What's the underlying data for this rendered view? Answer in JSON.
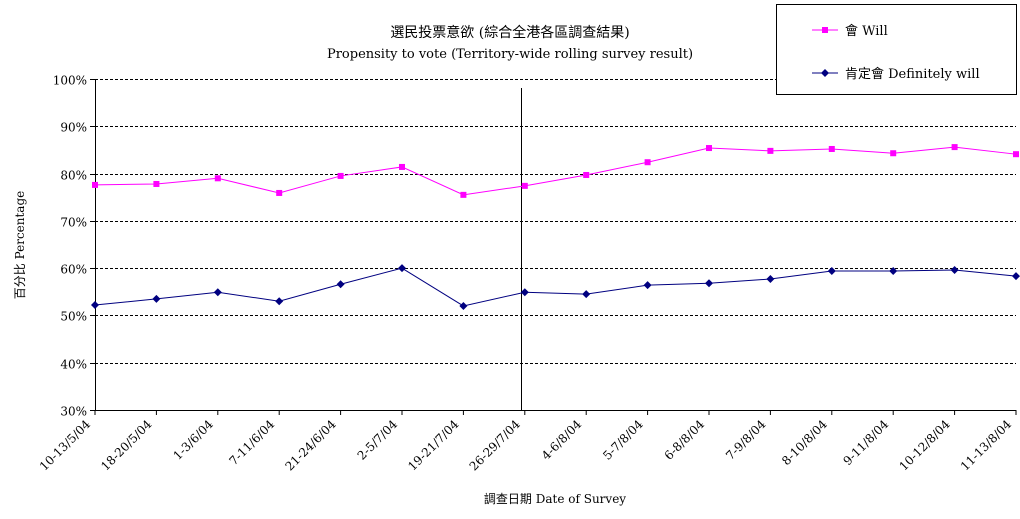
{
  "chart_data": {
    "type": "line",
    "title": "選民投票意欲 (綜合全港各區調查結果)",
    "subtitle": "Propensity to vote (Territory-wide rolling survey result)",
    "xlabel": "調查日期 Date of Survey",
    "ylabel": "百分比 Percentage",
    "ylim": [
      30,
      100
    ],
    "yticks": [
      "30%",
      "40%",
      "50%",
      "60%",
      "70%",
      "80%",
      "90%",
      "100%"
    ],
    "grid": true,
    "legend_position": "top-right",
    "categories": [
      "10-13/5/04",
      "18-20/5/04",
      "1-3/6/04",
      "7-11/6/04",
      "21-24/6/04",
      "2-5/7/04",
      "19-21/7/04",
      "26-29/7/04",
      "4-6/8/04",
      "5-7/8/04",
      "6-8/8/04",
      "7-9/8/04",
      "8-10/8/04",
      "9-11/8/04",
      "10-12/8/04",
      "11-13/8/04"
    ],
    "series": [
      {
        "name": "會 Will",
        "color": "#ff00ff",
        "marker": "square",
        "values": [
          77.6,
          77.8,
          79.0,
          75.9,
          79.5,
          81.4,
          75.5,
          77.4,
          79.7,
          82.4,
          85.4,
          84.8,
          85.2,
          84.3,
          85.6,
          84.1
        ]
      },
      {
        "name": "肯定會 Definitely will",
        "color": "#000080",
        "marker": "diamond",
        "values": [
          52.2,
          53.5,
          54.9,
          53.0,
          56.6,
          60.0,
          52.0,
          54.9,
          54.5,
          56.4,
          56.8,
          57.7,
          59.4,
          59.4,
          59.6,
          58.3
        ]
      }
    ],
    "annotations": [
      {
        "type": "vertical-line",
        "between": [
          "19-21/7/04",
          "26-29/7/04"
        ]
      }
    ]
  }
}
